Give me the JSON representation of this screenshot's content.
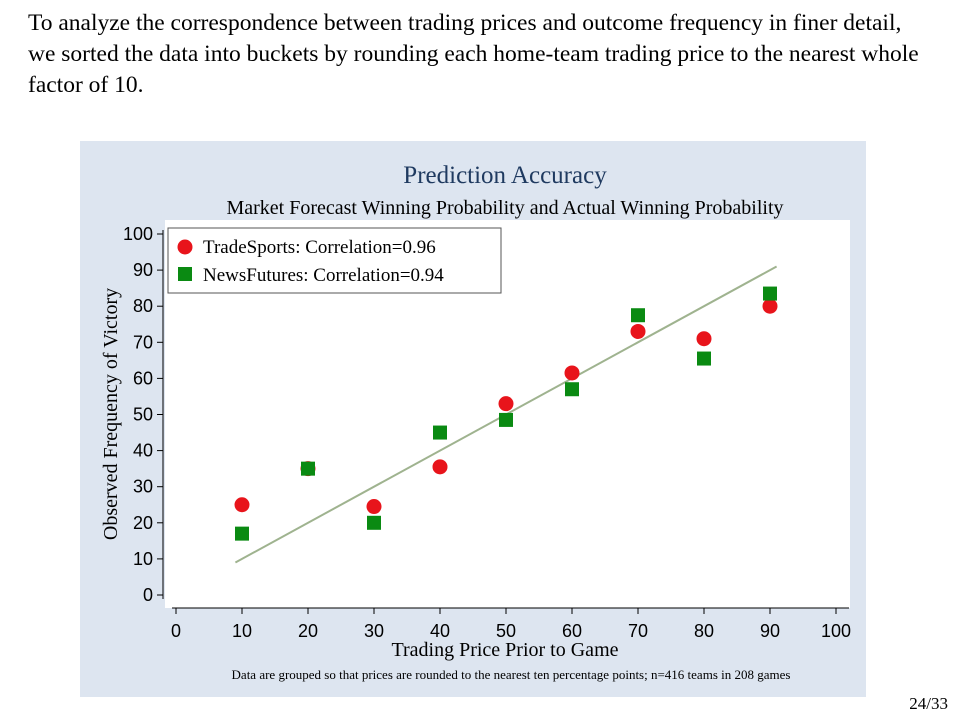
{
  "slide": {
    "intro_text": "To analyze the correspondence between trading prices and outcome frequency in finer detail, we sorted the data into buckets by rounding each home-team trading price to the nearest whole factor of 10.",
    "page_number": "24/33"
  },
  "colors": {
    "panel_background": "#dde5f0",
    "plot_background": "#ffffff",
    "title": "#1f3a60",
    "tradesports": "#e8141b",
    "newsfutures": "#0a8a12",
    "fit_line": "#9fb38f"
  },
  "chart_data": {
    "type": "scatter",
    "title": "Prediction Accuracy",
    "subtitle": "Market Forecast Winning Probability and Actual Winning Probability",
    "xlabel": "Trading Price Prior to Game",
    "ylabel": "Observed Frequency of Victory",
    "xlim": [
      0,
      100
    ],
    "ylim": [
      0,
      100
    ],
    "xticks": [
      0,
      10,
      20,
      30,
      40,
      50,
      60,
      70,
      80,
      90,
      100
    ],
    "yticks": [
      0,
      10,
      20,
      30,
      40,
      50,
      60,
      70,
      80,
      90,
      100
    ],
    "grid": false,
    "legend_position": "top-left",
    "note": "Data are grouped so that prices are rounded to the nearest ten percentage points; n=416 teams in 208 games",
    "series": [
      {
        "name": "TradeSports: Correlation=0.96",
        "marker": "circle",
        "x": [
          10,
          20,
          30,
          40,
          50,
          60,
          70,
          80,
          90
        ],
        "y": [
          25,
          35,
          24.5,
          35.5,
          53,
          61.5,
          73,
          71,
          80
        ]
      },
      {
        "name": "NewsFutures: Correlation=0.94",
        "marker": "square",
        "x": [
          10,
          20,
          30,
          40,
          50,
          60,
          70,
          80,
          90
        ],
        "y": [
          17,
          35,
          20,
          45,
          48.5,
          57,
          77.5,
          65.5,
          83.5
        ]
      }
    ],
    "fit_line": {
      "x": [
        9,
        91
      ],
      "y": [
        9,
        91
      ]
    }
  }
}
